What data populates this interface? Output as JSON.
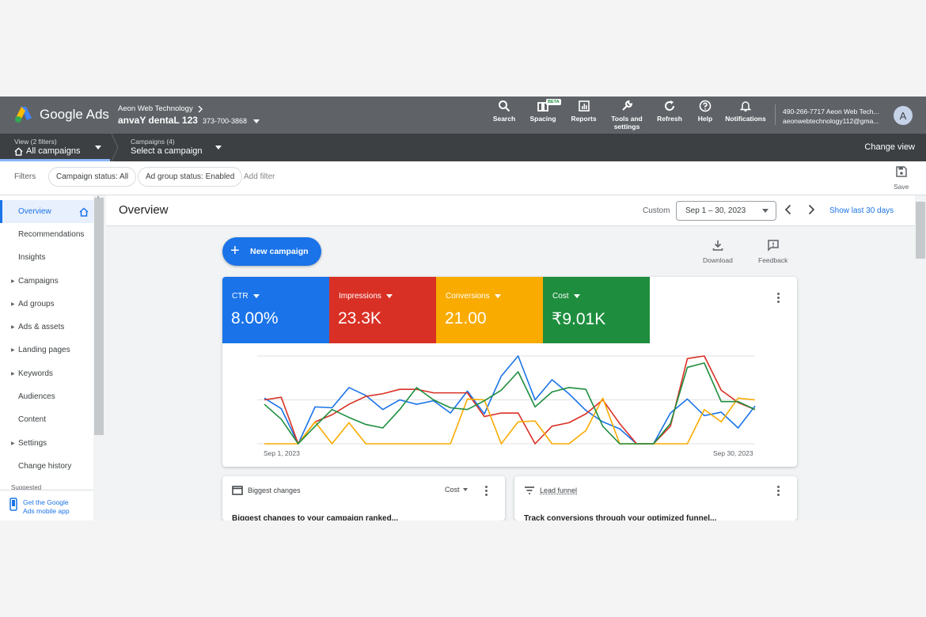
{
  "brand": {
    "name": "Google Ads"
  },
  "account": {
    "company": "Aeon Web Technology",
    "name": "anvaY dentaL 123",
    "id": "373-700-3868"
  },
  "toolbar": [
    {
      "label": "Search",
      "icon": "search-icon"
    },
    {
      "label": "Spacing",
      "icon": "spacing-icon",
      "badge": "BETA"
    },
    {
      "label": "Reports",
      "icon": "reports-icon"
    },
    {
      "label": "Tools and settings",
      "icon": "wrench-icon"
    },
    {
      "label": "Refresh",
      "icon": "refresh-icon"
    },
    {
      "label": "Help",
      "icon": "help-icon"
    },
    {
      "label": "Notifications",
      "icon": "bell-icon"
    }
  ],
  "user": {
    "phone_line": "490-266-7717 Aeon Web Tech...",
    "email": "aeonwebtechnology112@gma...",
    "avatar": "A"
  },
  "view": {
    "label": "View (2 filters)",
    "value": "All campaigns"
  },
  "campaigns": {
    "label": "Campaigns (4)",
    "value": "Select a campaign"
  },
  "change_view": "Change view",
  "filters": {
    "label": "Filters",
    "chips": [
      "Campaign status: All",
      "Ad group status: Enabled"
    ],
    "add": "Add filter",
    "save": "Save"
  },
  "sidebar": {
    "items": [
      {
        "label": "Overview",
        "active": true,
        "expandable": false
      },
      {
        "label": "Recommendations",
        "expandable": false
      },
      {
        "label": "Insights",
        "expandable": false
      },
      {
        "label": "Campaigns",
        "expandable": true
      },
      {
        "label": "Ad groups",
        "expandable": true
      },
      {
        "label": "Ads & assets",
        "expandable": true
      },
      {
        "label": "Landing pages",
        "expandable": true
      },
      {
        "label": "Keywords",
        "expandable": true
      },
      {
        "label": "Audiences",
        "expandable": false
      },
      {
        "label": "Content",
        "expandable": false
      },
      {
        "label": "Settings",
        "expandable": true
      },
      {
        "label": "Change history",
        "expandable": false
      }
    ],
    "suggested": "Suggested",
    "mobile_app": "Get the Google Ads mobile app"
  },
  "page": {
    "title": "Overview",
    "date_mode": "Custom",
    "date_range": "Sep 1 – 30, 2023",
    "show_last": "Show last 30 days",
    "new_campaign": "New campaign",
    "download": "Download",
    "feedback": "Feedback"
  },
  "metrics": [
    {
      "name": "CTR",
      "value": "8.00%",
      "color": "#1a73e8"
    },
    {
      "name": "Impressions",
      "value": "23.3K",
      "color": "#d93025"
    },
    {
      "name": "Conversions",
      "value": "21.00",
      "color": "#f9ab00"
    },
    {
      "name": "Cost",
      "value": "₹9.01K",
      "color": "#1e8e3e"
    }
  ],
  "chart_data": {
    "type": "line",
    "x_start_label": "Sep 1, 2023",
    "x_end_label": "Sep 30, 2023",
    "x": [
      1,
      2,
      3,
      4,
      5,
      6,
      7,
      8,
      9,
      10,
      11,
      12,
      13,
      14,
      15,
      16,
      17,
      18,
      19,
      20,
      21,
      22,
      23,
      24,
      25,
      26,
      27,
      28,
      29,
      30
    ],
    "grid": true,
    "series": [
      {
        "name": "CTR",
        "color": "#1a73e8",
        "values": [
          0.52,
          0.4,
          0.0,
          0.42,
          0.41,
          0.64,
          0.55,
          0.39,
          0.5,
          0.45,
          0.49,
          0.35,
          0.6,
          0.34,
          0.77,
          1.0,
          0.5,
          0.73,
          0.57,
          0.38,
          0.25,
          0.17,
          0.0,
          0.0,
          0.35,
          0.51,
          0.32,
          0.36,
          0.18,
          0.43
        ]
      },
      {
        "name": "Impressions",
        "color": "#d93025",
        "values": [
          0.5,
          0.53,
          0.0,
          0.25,
          0.33,
          0.45,
          0.54,
          0.57,
          0.62,
          0.62,
          0.58,
          0.58,
          0.58,
          0.31,
          0.35,
          0.35,
          0.0,
          0.2,
          0.24,
          0.34,
          0.5,
          0.23,
          0.0,
          0.0,
          0.2,
          0.97,
          1.0,
          0.61,
          0.47,
          0.39
        ]
      },
      {
        "name": "Conversions",
        "color": "#f9ab00",
        "values": [
          0.0,
          0.0,
          0.0,
          0.25,
          0.0,
          0.24,
          0.0,
          0.0,
          0.0,
          0.0,
          0.0,
          0.0,
          0.51,
          0.5,
          0.0,
          0.25,
          0.26,
          0.0,
          0.0,
          0.15,
          0.52,
          0.0,
          0.0,
          0.0,
          0.0,
          0.0,
          0.39,
          0.25,
          0.52,
          0.5
        ]
      },
      {
        "name": "Cost",
        "color": "#1e8e3e",
        "values": [
          0.45,
          0.28,
          0.0,
          0.2,
          0.39,
          0.3,
          0.22,
          0.18,
          0.39,
          0.64,
          0.5,
          0.41,
          0.39,
          0.49,
          0.61,
          0.82,
          0.42,
          0.59,
          0.64,
          0.62,
          0.2,
          0.0,
          0.0,
          0.0,
          0.23,
          0.87,
          0.92,
          0.48,
          0.48,
          0.39
        ]
      }
    ]
  },
  "panels": {
    "biggest_changes": {
      "title": "Biggest changes",
      "selector": "Cost",
      "body": "Biggest changes to your campaign ranked..."
    },
    "lead_funnel": {
      "title": "Lead funnel",
      "body": "Track conversions through your optimized funnel..."
    }
  }
}
